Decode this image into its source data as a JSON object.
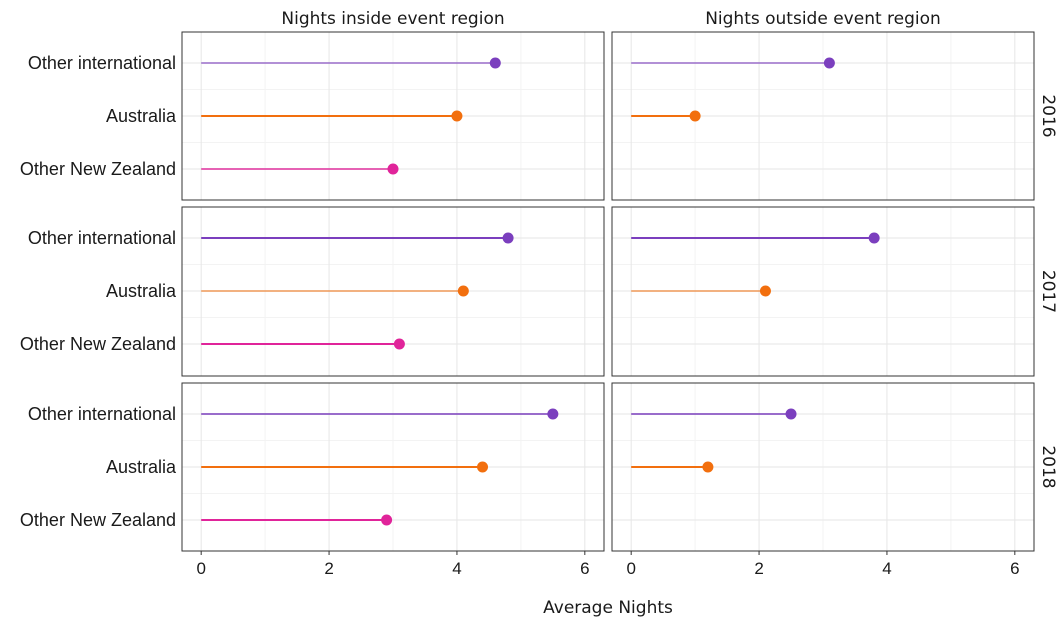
{
  "chart_data": {
    "type": "lollipop",
    "xlabel": "Average Nights",
    "xlim": [
      -0.3,
      6.3
    ],
    "x_ticks": [
      0,
      2,
      4,
      6
    ],
    "categories": [
      "Other international",
      "Australia",
      "Other New Zealand"
    ],
    "columns": [
      "Nights inside event region",
      "Nights outside event region"
    ],
    "rows": [
      "2016",
      "2017",
      "2018"
    ],
    "grid": true,
    "colors": {
      "Other international": "#7b3fbe",
      "Australia": "#f26f0e",
      "Other New Zealand": "#e0249a"
    },
    "line_opacity": {
      "2016": [
        0.55,
        1.0,
        0.7
      ],
      "2017": [
        1.0,
        0.5,
        1.0
      ],
      "2018": [
        0.75,
        1.0,
        1.0
      ]
    },
    "panels": [
      {
        "row": "2016",
        "column": "Nights inside event region",
        "values": [
          4.6,
          4.0,
          3.0
        ]
      },
      {
        "row": "2016",
        "column": "Nights outside event region",
        "values": [
          3.1,
          1.0,
          null
        ]
      },
      {
        "row": "2017",
        "column": "Nights inside event region",
        "values": [
          4.8,
          4.1,
          3.1
        ]
      },
      {
        "row": "2017",
        "column": "Nights outside event region",
        "values": [
          3.8,
          2.1,
          null
        ]
      },
      {
        "row": "2018",
        "column": "Nights inside event region",
        "values": [
          5.5,
          4.4,
          2.9
        ]
      },
      {
        "row": "2018",
        "column": "Nights outside event region",
        "values": [
          2.5,
          1.2,
          null
        ]
      }
    ]
  }
}
